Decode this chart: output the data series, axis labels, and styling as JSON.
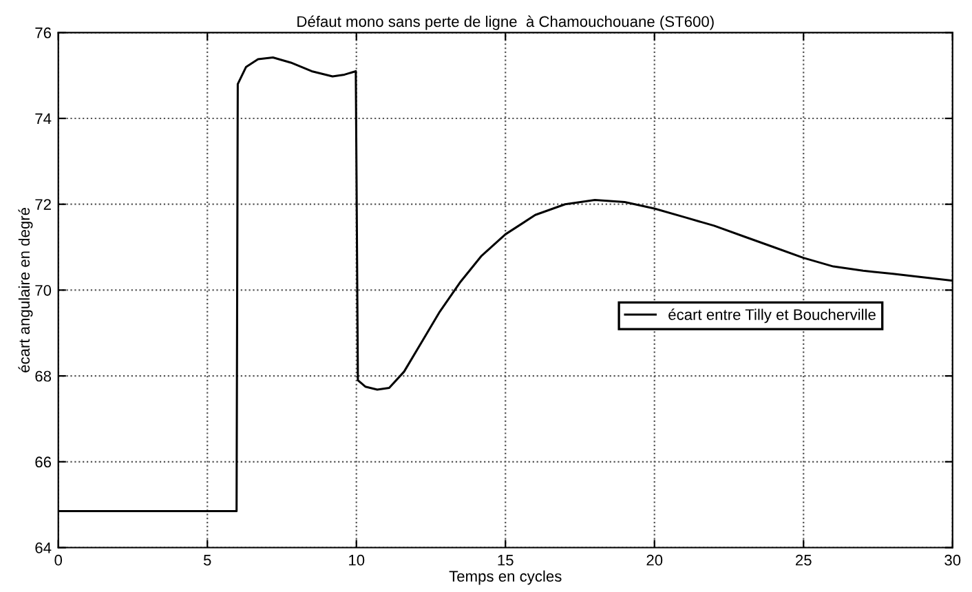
{
  "chart_data": {
    "type": "line",
    "title": "Défaut mono sans perte de ligne  à Chamouchouane (ST600)",
    "xlabel": "Temps en cycles",
    "ylabel": "écart angulaire en degré",
    "x": [
      0,
      3,
      5.98,
      6.02,
      6.3,
      6.7,
      7.2,
      7.8,
      8.5,
      9.2,
      9.6,
      9.98,
      10.05,
      10.3,
      10.7,
      11.1,
      11.6,
      12.2,
      12.8,
      13.5,
      14.2,
      15,
      16,
      17,
      18,
      19,
      20,
      21,
      22,
      23,
      24,
      25,
      26,
      27,
      28,
      29,
      30
    ],
    "series": [
      {
        "name": "écart entre Tilly et Boucherville",
        "color": "#000000",
        "values": [
          64.85,
          64.85,
          64.85,
          74.8,
          75.2,
          75.38,
          75.42,
          75.3,
          75.1,
          74.98,
          75.02,
          75.1,
          67.9,
          67.75,
          67.68,
          67.72,
          68.1,
          68.8,
          69.5,
          70.2,
          70.8,
          71.3,
          71.75,
          72.0,
          72.1,
          72.05,
          71.9,
          71.7,
          71.5,
          71.25,
          71.0,
          70.75,
          70.55,
          70.45,
          70.38,
          70.3,
          70.22
        ]
      }
    ],
    "xlim": [
      0,
      30
    ],
    "ylim": [
      64,
      76
    ],
    "xticks": [
      0,
      5,
      10,
      15,
      20,
      25,
      30
    ],
    "yticks": [
      64,
      66,
      68,
      70,
      72,
      74,
      76
    ],
    "grid": true,
    "legend": "right",
    "marker": "none",
    "line_style": "solid"
  }
}
